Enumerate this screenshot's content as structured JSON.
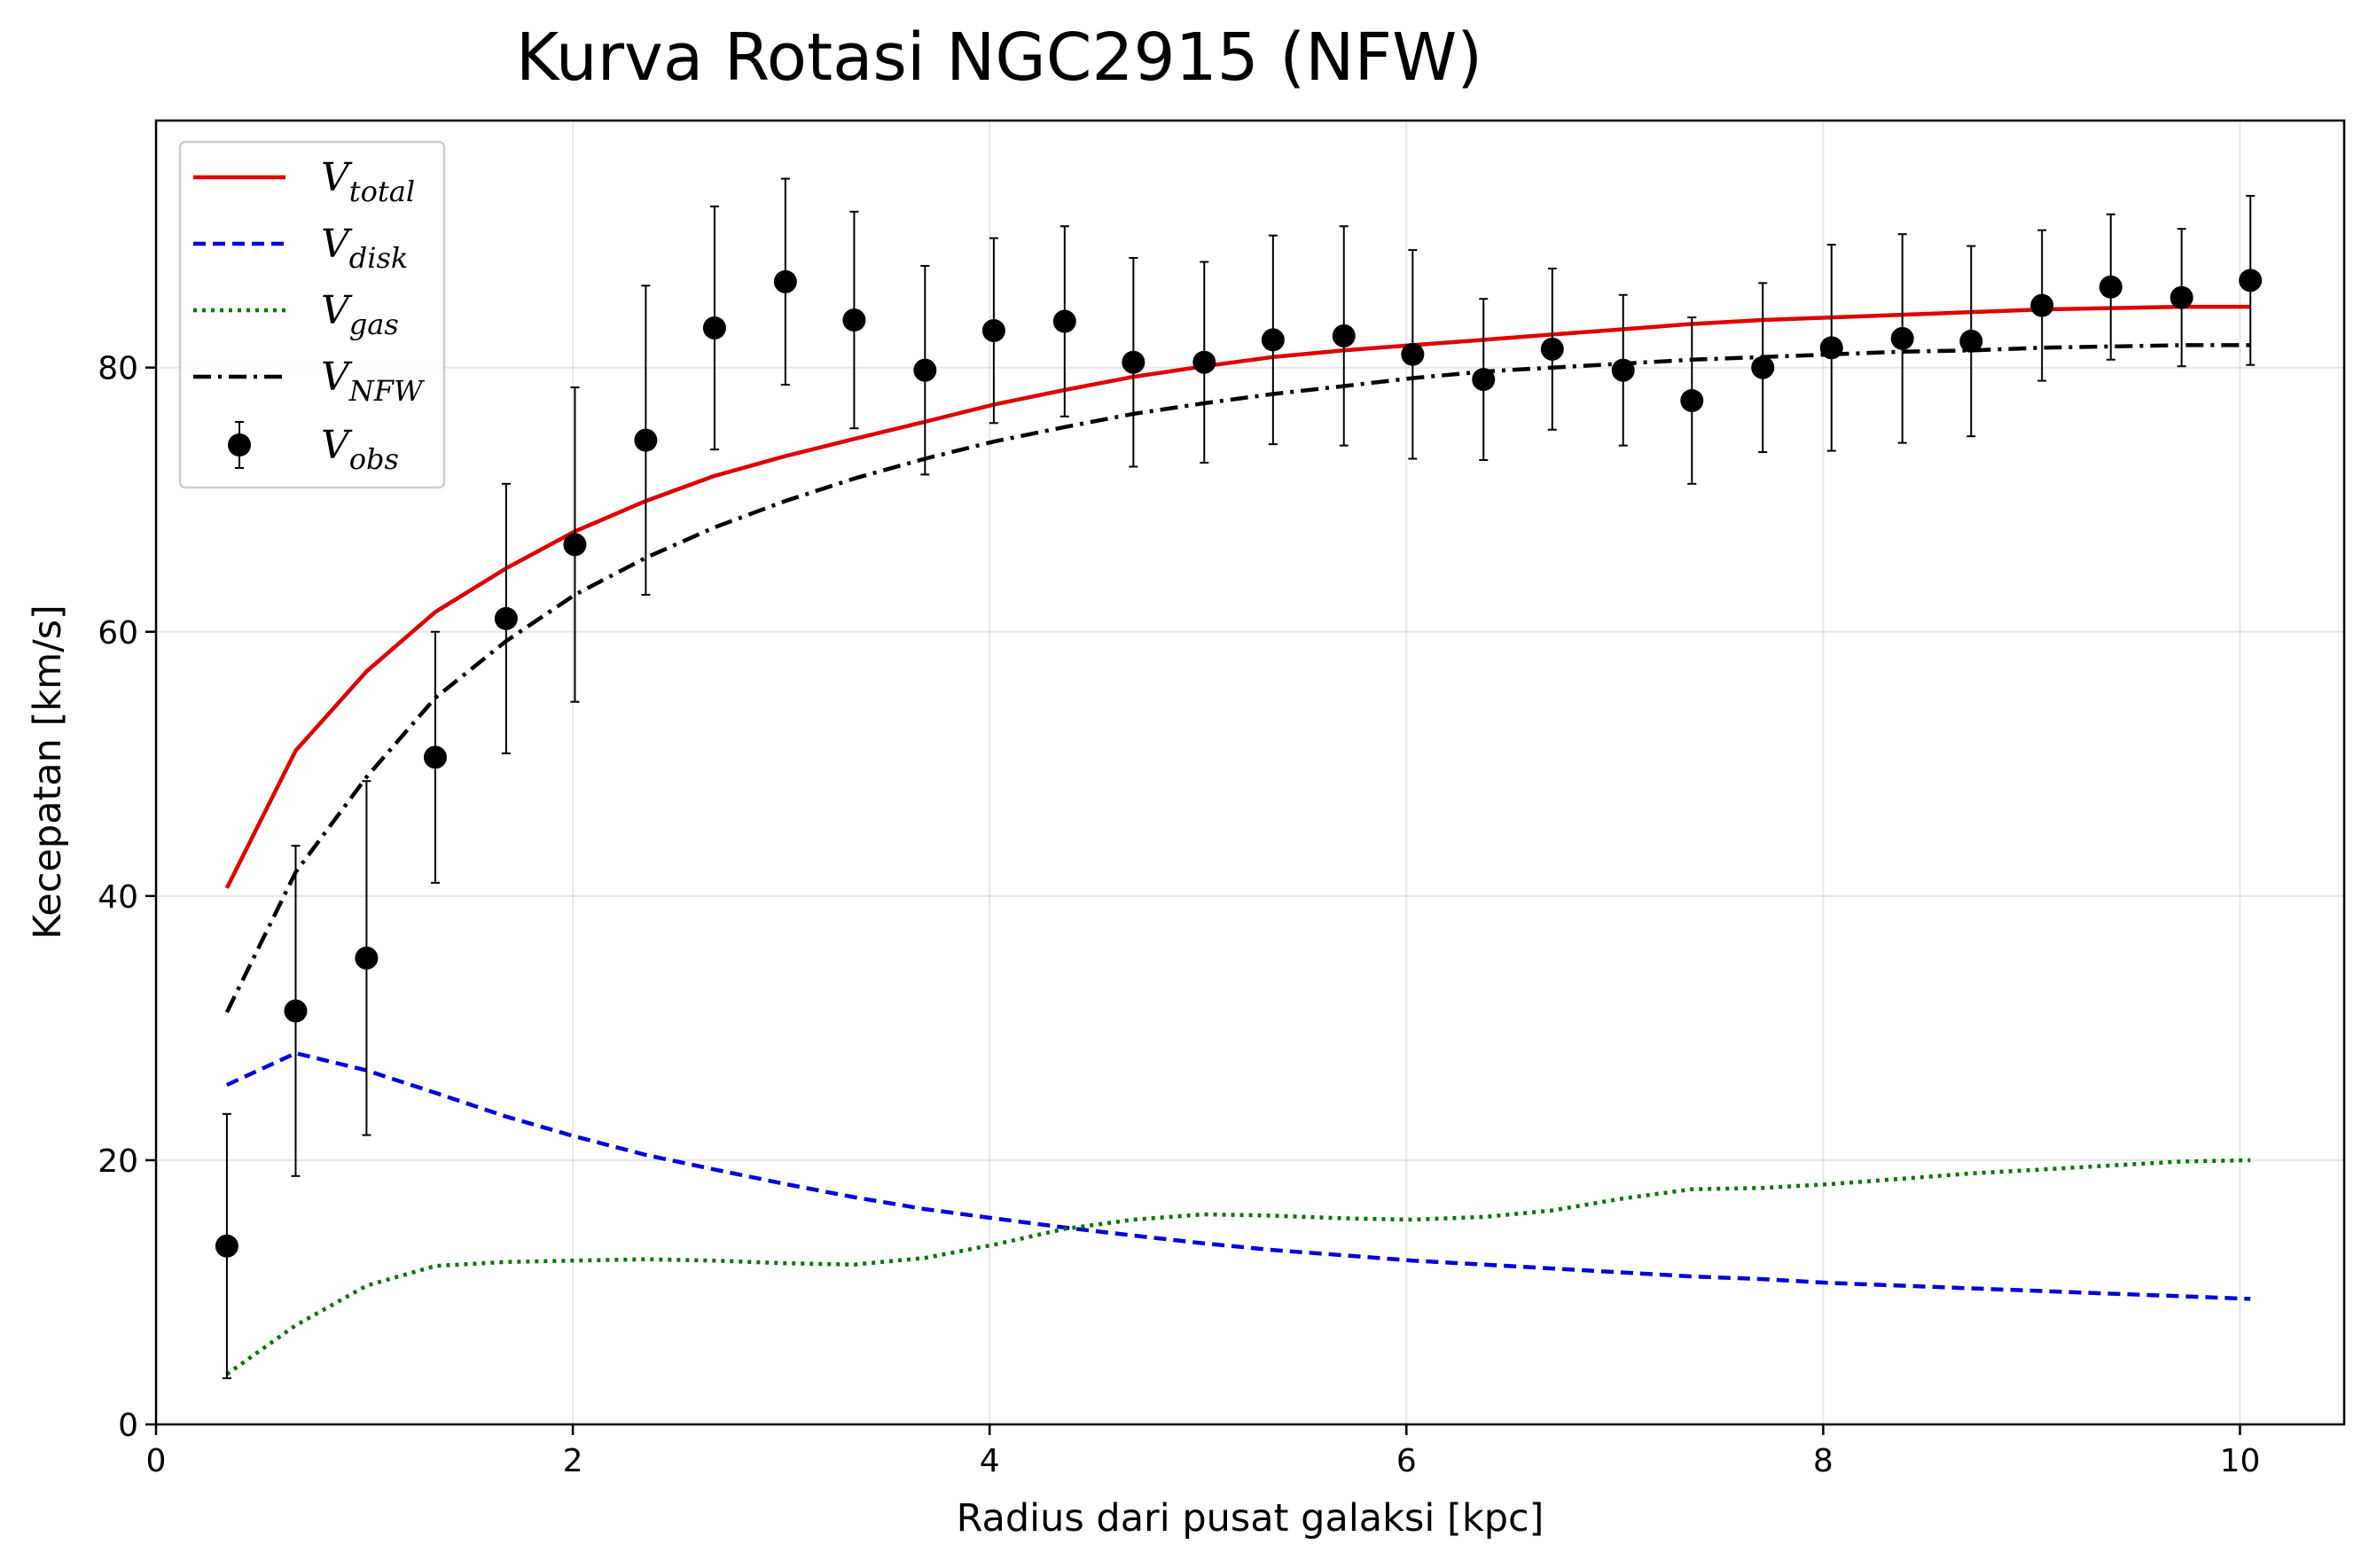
{
  "chart_data": {
    "type": "line",
    "title": "Kurva Rotasi NGC2915 (NFW)",
    "xlabel": "Radius dari pusat galaksi [kpc]",
    "ylabel": "Kecepatan [km/s]",
    "xlim": [
      0,
      10.5
    ],
    "ylim": [
      0,
      98.7
    ],
    "xticks": [
      0,
      2,
      4,
      6,
      8,
      10
    ],
    "yticks": [
      0,
      20,
      40,
      60,
      80
    ],
    "xtick_labels": [
      "0",
      "2",
      "4",
      "6",
      "8",
      "10"
    ],
    "ytick_labels": [
      "0",
      "20",
      "40",
      "60",
      "80"
    ],
    "grid": true,
    "legend_position": "upper-left",
    "x": [
      0.34,
      0.67,
      1.01,
      1.34,
      1.68,
      2.01,
      2.35,
      2.68,
      3.02,
      3.35,
      3.69,
      4.02,
      4.36,
      4.69,
      5.03,
      5.36,
      5.7,
      6.03,
      6.37,
      6.7,
      7.04,
      7.37,
      7.71,
      8.04,
      8.38,
      8.71,
      9.05,
      9.38,
      9.72,
      10.05
    ],
    "series": [
      {
        "name": "V",
        "sub": "total",
        "color": "#e00000",
        "style": "solid",
        "values": [
          40.6,
          51.0,
          57.0,
          61.5,
          64.8,
          67.6,
          69.9,
          71.8,
          73.3,
          74.6,
          75.9,
          77.2,
          78.3,
          79.3,
          80.1,
          80.8,
          81.3,
          81.7,
          82.1,
          82.5,
          82.9,
          83.3,
          83.6,
          83.8,
          84.0,
          84.2,
          84.4,
          84.5,
          84.6,
          84.6
        ]
      },
      {
        "name": "V",
        "sub": "disk",
        "color": "#0000dd",
        "style": "dashed",
        "values": [
          25.7,
          28.1,
          26.8,
          25.1,
          23.3,
          21.8,
          20.4,
          19.3,
          18.2,
          17.2,
          16.3,
          15.6,
          14.9,
          14.3,
          13.7,
          13.2,
          12.8,
          12.4,
          12.1,
          11.8,
          11.5,
          11.2,
          11.0,
          10.7,
          10.5,
          10.3,
          10.1,
          9.9,
          9.7,
          9.5
        ]
      },
      {
        "name": "V",
        "sub": "gas",
        "color": "#007800",
        "style": "dotted",
        "values": [
          3.8,
          7.5,
          10.5,
          12.0,
          12.3,
          12.4,
          12.5,
          12.4,
          12.2,
          12.1,
          12.6,
          13.6,
          14.8,
          15.5,
          15.9,
          15.8,
          15.6,
          15.5,
          15.7,
          16.2,
          17.1,
          17.8,
          17.9,
          18.2,
          18.6,
          19.0,
          19.3,
          19.6,
          19.9,
          20.0
        ]
      },
      {
        "name": "V",
        "sub": "NFW",
        "color": "#000000",
        "style": "dashdot",
        "values": [
          31.2,
          41.8,
          49.0,
          55.0,
          59.3,
          62.8,
          65.6,
          67.9,
          69.9,
          71.6,
          73.1,
          74.4,
          75.5,
          76.5,
          77.3,
          78.0,
          78.6,
          79.2,
          79.7,
          80.0,
          80.3,
          80.6,
          80.8,
          81.0,
          81.2,
          81.3,
          81.5,
          81.6,
          81.7,
          81.7
        ]
      }
    ],
    "observed": {
      "name": "V",
      "sub": "obs",
      "color": "#000000",
      "values": [
        13.5,
        31.3,
        35.3,
        50.5,
        61.0,
        66.6,
        74.5,
        83.0,
        86.5,
        83.6,
        79.8,
        82.8,
        83.5,
        80.4,
        80.4,
        82.1,
        82.4,
        81.0,
        79.1,
        81.4,
        79.8,
        77.5,
        80.0,
        81.5,
        82.2,
        82.0,
        84.7,
        86.1,
        85.3,
        86.6
      ],
      "errors": [
        10.0,
        12.5,
        13.4,
        9.5,
        10.2,
        11.9,
        11.7,
        9.2,
        7.8,
        8.2,
        7.9,
        7.0,
        7.2,
        7.9,
        7.6,
        7.9,
        8.3,
        7.9,
        6.1,
        6.1,
        5.7,
        6.3,
        6.4,
        7.8,
        7.9,
        7.2,
        5.7,
        5.5,
        5.2,
        6.4
      ]
    }
  }
}
